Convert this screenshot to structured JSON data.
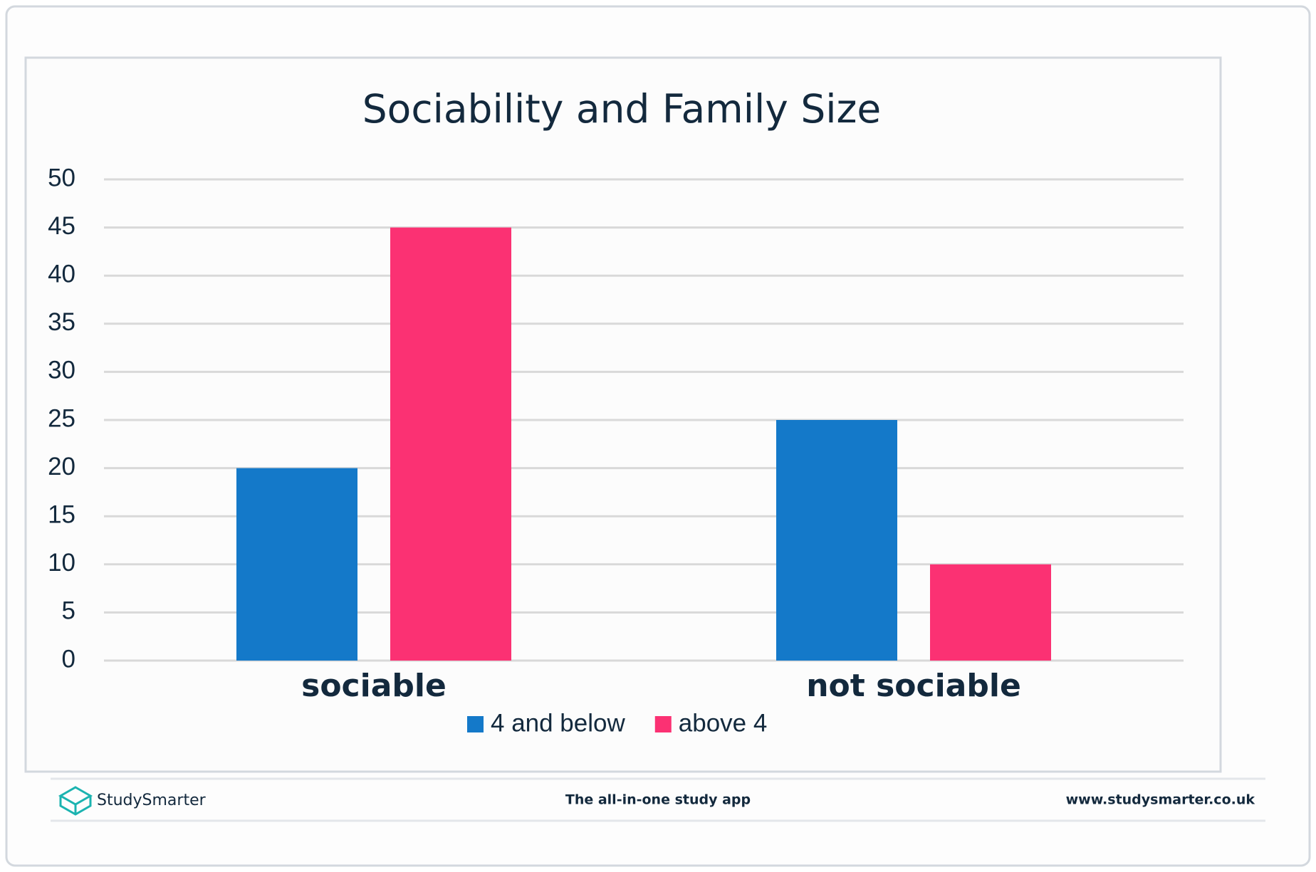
{
  "chart_data": {
    "type": "bar",
    "title": "Sociability and Family Size",
    "categories": [
      "sociable",
      "not sociable"
    ],
    "series": [
      {
        "name": "4 and below",
        "color": "#1479c9",
        "values": [
          20,
          25
        ]
      },
      {
        "name": "above 4",
        "color": "#fb3173",
        "values": [
          45,
          10
        ]
      }
    ],
    "ylim": [
      0,
      50
    ],
    "yticks": [
      0,
      5,
      10,
      15,
      20,
      25,
      30,
      35,
      40,
      45,
      50
    ],
    "grid": true,
    "legend": "bottom"
  },
  "footer": {
    "brand": "StudySmarter",
    "tagline": "The all-in-one study app",
    "url": "www.studysmarter.co.uk"
  }
}
